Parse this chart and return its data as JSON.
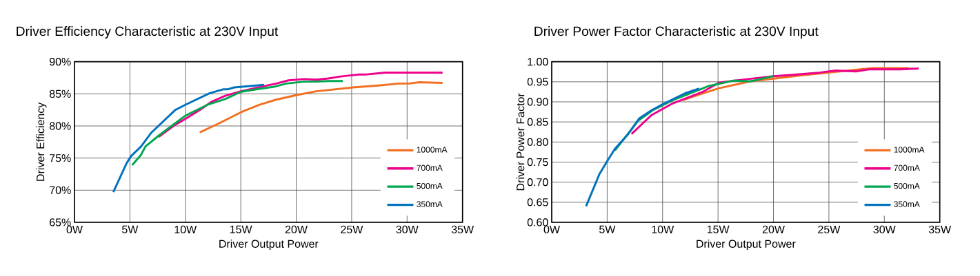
{
  "chart_data": [
    {
      "type": "line",
      "title": "Driver Efficiency Characteristic at 230V Input",
      "xlabel": "Driver Output Power",
      "ylabel": "Driver Efficiency",
      "xlim": [
        0,
        35
      ],
      "ylim": [
        65,
        90
      ],
      "xticks": [
        {
          "value": 0,
          "label": "0W"
        },
        {
          "value": 5,
          "label": "5W"
        },
        {
          "value": 10,
          "label": "10W"
        },
        {
          "value": 15,
          "label": "15W"
        },
        {
          "value": 20,
          "label": "20W"
        },
        {
          "value": 25,
          "label": "25W"
        },
        {
          "value": 30,
          "label": "30W"
        },
        {
          "value": 35,
          "label": "35W"
        }
      ],
      "yticks": [
        {
          "value": 65,
          "label": "65%"
        },
        {
          "value": 70,
          "label": "70%"
        },
        {
          "value": 75,
          "label": "75%"
        },
        {
          "value": 80,
          "label": "80%"
        },
        {
          "value": 85,
          "label": "85%"
        },
        {
          "value": 90,
          "label": "90%"
        }
      ],
      "grid": true,
      "legend": "bottom right",
      "series": [
        {
          "name": "1000mA",
          "color": "#f26f21",
          "x": [
            11.3,
            12.9,
            15.1,
            16.7,
            18.2,
            20.0,
            21.8,
            25.1,
            27.4,
            29.3,
            30.2,
            31.1,
            33.2
          ],
          "values": [
            79.0,
            80.3,
            82.2,
            83.3,
            84.1,
            84.8,
            85.4,
            86.0,
            86.3,
            86.6,
            86.6,
            86.8,
            86.7
          ]
        },
        {
          "name": "700mA",
          "color": "#ec008c",
          "x": [
            7.6,
            9.1,
            10.0,
            11.3,
            12.4,
            13.6,
            15.0,
            17.1,
            18.2,
            19.3,
            20.7,
            21.8,
            22.9,
            24.0,
            25.6,
            26.2,
            28.0,
            33.2
          ],
          "values": [
            78.3,
            80.2,
            81.1,
            82.5,
            83.8,
            84.7,
            85.4,
            86.2,
            86.6,
            87.1,
            87.3,
            87.2,
            87.4,
            87.7,
            88.0,
            88.0,
            88.3,
            88.3
          ]
        },
        {
          "name": "500mA",
          "color": "#00a650",
          "x": [
            5.2,
            6.0,
            6.4,
            7.6,
            10.0,
            12.0,
            13.6,
            15.0,
            16.0,
            18.0,
            19.1,
            20.7,
            21.8,
            22.9,
            24.2
          ],
          "values": [
            73.9,
            75.5,
            76.8,
            78.5,
            81.6,
            83.3,
            84.2,
            85.3,
            85.6,
            86.1,
            86.6,
            86.9,
            86.9,
            87.0,
            87.0
          ]
        },
        {
          "name": "350mA",
          "color": "#0072bc",
          "x": [
            3.5,
            4.7,
            5.1,
            6.0,
            6.9,
            9.1,
            10.0,
            12.2,
            13.4,
            13.8,
            14.4,
            17.1
          ],
          "values": [
            69.7,
            74.2,
            75.3,
            76.8,
            78.9,
            82.5,
            83.3,
            85.1,
            85.7,
            85.7,
            86.0,
            86.4
          ]
        }
      ]
    },
    {
      "type": "line",
      "title": "Driver Power Factor Characteristic at 230V Input",
      "xlabel": "Driver Output Power",
      "ylabel": "Driver Power Factor",
      "xlim": [
        0,
        35
      ],
      "ylim": [
        0.6,
        1.0
      ],
      "xticks": [
        {
          "value": 0,
          "label": "0W"
        },
        {
          "value": 5,
          "label": "5W"
        },
        {
          "value": 10,
          "label": "10W"
        },
        {
          "value": 15,
          "label": "15W"
        },
        {
          "value": 20,
          "label": "20W"
        },
        {
          "value": 25,
          "label": "25W"
        },
        {
          "value": 30,
          "label": "30W"
        },
        {
          "value": 35,
          "label": "35W"
        }
      ],
      "yticks": [
        {
          "value": 0.6,
          "label": "0.60"
        },
        {
          "value": 0.65,
          "label": "0.65"
        },
        {
          "value": 0.7,
          "label": "0.70"
        },
        {
          "value": 0.75,
          "label": "0.75"
        },
        {
          "value": 0.8,
          "label": "0.80"
        },
        {
          "value": 0.85,
          "label": "0.85"
        },
        {
          "value": 0.9,
          "label": "0.90"
        },
        {
          "value": 0.95,
          "label": "0.95"
        },
        {
          "value": 1.0,
          "label": "1.00"
        }
      ],
      "grid": true,
      "legend": "bottom right",
      "series": [
        {
          "name": "1000mA",
          "color": "#f26f21",
          "x": [
            11.8,
            13.4,
            15.1,
            17.9,
            20.0,
            22.5,
            24.9,
            28.9,
            32.2
          ],
          "values": [
            0.904,
            0.919,
            0.934,
            0.951,
            0.958,
            0.966,
            0.973,
            0.984,
            0.984
          ]
        },
        {
          "name": "700mA",
          "color": "#ec008c",
          "x": [
            7.2,
            9.0,
            10.9,
            12.3,
            13.7,
            15.1,
            16.5,
            20.0,
            22.5,
            24.2,
            25.6,
            27.5,
            28.6,
            31.4,
            33.1
          ],
          "values": [
            0.82,
            0.867,
            0.896,
            0.911,
            0.926,
            0.948,
            0.953,
            0.964,
            0.969,
            0.973,
            0.978,
            0.976,
            0.981,
            0.981,
            0.983
          ]
        },
        {
          "name": "500mA",
          "color": "#00a650",
          "x": [
            5.7,
            7.8,
            9.1,
            10.9,
            13.2,
            14.1,
            16.4,
            17.9,
            20.0
          ],
          "values": [
            0.779,
            0.853,
            0.879,
            0.904,
            0.929,
            0.939,
            0.953,
            0.951,
            0.964
          ]
        },
        {
          "name": "350mA",
          "color": "#0072bc",
          "x": [
            3.1,
            4.3,
            5.0,
            5.7,
            6.9,
            7.9,
            9.0,
            10.0,
            12.0,
            13.3
          ],
          "values": [
            0.64,
            0.72,
            0.752,
            0.783,
            0.82,
            0.859,
            0.879,
            0.894,
            0.921,
            0.933
          ]
        }
      ]
    }
  ]
}
